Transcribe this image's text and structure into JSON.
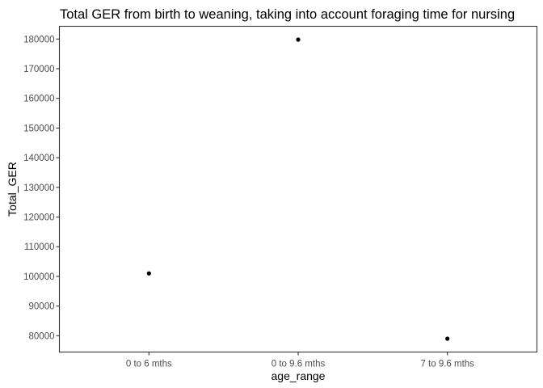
{
  "chart_data": {
    "type": "scatter",
    "title": "Total GER from birth to weaning, taking into account foraging time for nursing",
    "xlabel": "age_range",
    "ylabel": "Total_GER",
    "categories": [
      "0 to 6 mths",
      "0 to 9.6 mths",
      "7 to 9.6 mths"
    ],
    "values": [
      101000,
      179800,
      79000
    ],
    "ylim": [
      74500,
      184300
    ],
    "yticks": [
      80000,
      90000,
      100000,
      110000,
      120000,
      130000,
      140000,
      150000,
      160000,
      170000,
      180000
    ],
    "ytick_labels": [
      "80000",
      "90000",
      "100000",
      "110000",
      "120000",
      "130000",
      "140000",
      "150000",
      "160000",
      "170000",
      "180000"
    ],
    "grid": false,
    "legend": "none",
    "point_color": "#000000"
  }
}
